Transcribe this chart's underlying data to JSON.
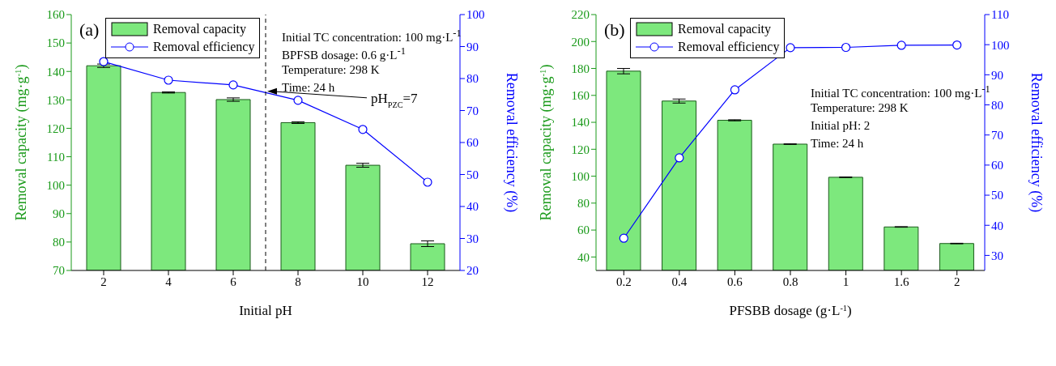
{
  "chart_data": [
    {
      "type": "bar",
      "x": [
        2,
        4,
        6,
        8,
        10,
        12
      ],
      "xlim": [
        1,
        13
      ],
      "xticks": [
        2,
        4,
        6,
        8,
        10,
        12
      ],
      "xlabel": "Initial pH",
      "ylabel": "Removal capacity (mg·g$^{-1}$)",
      "y2label": "Removal efficiency (%)",
      "ylim": [
        70,
        160
      ],
      "yticks": [
        70,
        80,
        90,
        100,
        110,
        120,
        130,
        140,
        150,
        160
      ],
      "y2lim": [
        20,
        100
      ],
      "y2ticks": [
        20,
        30,
        40,
        50,
        60,
        70,
        80,
        90,
        100
      ],
      "legend": "top left",
      "marker": "circle",
      "line_style": "solid",
      "series": [
        {
          "name": "Removal capacity",
          "color": "#7de87d",
          "values": [
            142.0,
            132.6,
            130.1,
            122.0,
            107.0,
            79.4
          ],
          "errors": [
            0.6,
            0.2,
            0.6,
            0.3,
            0.7,
            1.0
          ]
        },
        {
          "name": "Removal efficiency",
          "type": "line",
          "axis": "y2",
          "color": "#0000ff",
          "values": [
            85.3,
            79.5,
            78.0,
            73.2,
            64.1,
            47.6
          ]
        }
      ],
      "ref_lines": [
        {
          "axis": "x",
          "value": 7,
          "label": "pH$_{PZC}$=7",
          "color": "#000000",
          "line_style": "dashed"
        }
      ],
      "annotations": [
        "(a)",
        "Initial TC concentration: 100 mg·L$^{-1}$",
        "BPFSB dosage: 0.6 g·L$^{-1}$",
        "Temperature: 298 K",
        "Time: 24 h"
      ]
    },
    {
      "type": "bar",
      "categories": [
        "0.2",
        "0.4",
        "0.6",
        "0.8",
        "1",
        "1.6",
        "2"
      ],
      "xlabel": "PFSBB dosage (g·L$^{-1}$)",
      "ylabel": "Removal capacity (mg·g$^{-1}$)",
      "y2label": "Removal efficiency (%)",
      "ylim": [
        30,
        220
      ],
      "yticks": [
        40,
        60,
        80,
        100,
        120,
        140,
        160,
        180,
        200,
        220
      ],
      "y2lim": [
        25,
        110
      ],
      "y2ticks": [
        30,
        40,
        50,
        60,
        70,
        80,
        90,
        100,
        110
      ],
      "legend": "top left",
      "marker": "circle",
      "line_style": "solid",
      "series": [
        {
          "name": "Removal capacity",
          "color": "#7de87d",
          "values": [
            178.0,
            155.8,
            141.5,
            123.8,
            99.2,
            62.3,
            50.0
          ],
          "errors": [
            2.0,
            1.5,
            0.4,
            0.2,
            0.2,
            0.2,
            0.2
          ]
        },
        {
          "name": "Removal efficiency",
          "type": "line",
          "axis": "y2",
          "color": "#0000ff",
          "values": [
            35.7,
            62.4,
            85.0,
            99.0,
            99.1,
            99.8,
            99.9
          ]
        }
      ],
      "annotations": [
        "(b)",
        "Initial TC concentration: 100 mg·L$^{-1}$",
        "Temperature: 298 K",
        "Initial pH: 2",
        "Time: 24 h"
      ]
    }
  ]
}
